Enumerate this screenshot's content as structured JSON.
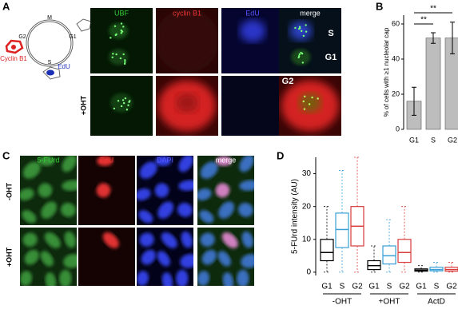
{
  "panels": {
    "a": "A",
    "b": "B",
    "c": "C",
    "d": "D"
  },
  "panel_a": {
    "diagram": {
      "m": "M",
      "g2": "G2",
      "g1": "G1",
      "s": "S",
      "cyclin": "Cyclin B1",
      "edu": "EdU"
    },
    "columns": [
      "UBF",
      "cyclin B1",
      "EdU",
      "merge"
    ],
    "row_label": "+OHT",
    "phase_labels": [
      "S",
      "G1",
      "G2"
    ]
  },
  "panel_c": {
    "columns": [
      "5-FUrd",
      "EdU",
      "DAPI",
      "merge"
    ],
    "rows": [
      "-OHT",
      "+OHT"
    ]
  },
  "chart_data": [
    {
      "type": "bar",
      "ylabel": "% of cells with ≥1 nucleolar cap",
      "categories": [
        "G1",
        "S",
        "G2"
      ],
      "values": [
        16,
        52,
        52
      ],
      "errors": [
        8,
        3,
        9
      ],
      "color": "#bdbdbd",
      "ylim": [
        0,
        65
      ],
      "yticks": [
        0,
        20,
        40,
        60
      ],
      "annotations": [
        "**",
        "**"
      ]
    },
    {
      "type": "box",
      "ylabel": "5-FUrd intensity (AU)",
      "categories": [
        "-OHT",
        "+OHT",
        "ActD"
      ],
      "series": [
        {
          "name": "G1",
          "color": "#000000",
          "min": [
            0,
            0,
            0
          ],
          "q1": [
            3.5,
            0.8,
            0.3
          ],
          "median": [
            6,
            2,
            0.6
          ],
          "q3": [
            10,
            3.5,
            1
          ],
          "max": [
            20,
            8,
            2
          ]
        },
        {
          "name": "S",
          "color": "#3a9fd6",
          "min": [
            0,
            0,
            0
          ],
          "q1": [
            7.5,
            2.5,
            0.4
          ],
          "median": [
            13,
            5,
            0.8
          ],
          "q3": [
            18,
            8,
            1.5
          ],
          "max": [
            31,
            16,
            3
          ]
        },
        {
          "name": "G2",
          "color": "#d93b3b",
          "min": [
            0,
            0,
            0
          ],
          "q1": [
            8,
            3,
            0.3
          ],
          "median": [
            14,
            6,
            0.8
          ],
          "q3": [
            20,
            10,
            1.5
          ],
          "max": [
            35,
            20,
            3
          ]
        }
      ],
      "ylim": [
        -1,
        35
      ],
      "yticks": [
        0,
        10,
        20,
        30
      ]
    }
  ]
}
